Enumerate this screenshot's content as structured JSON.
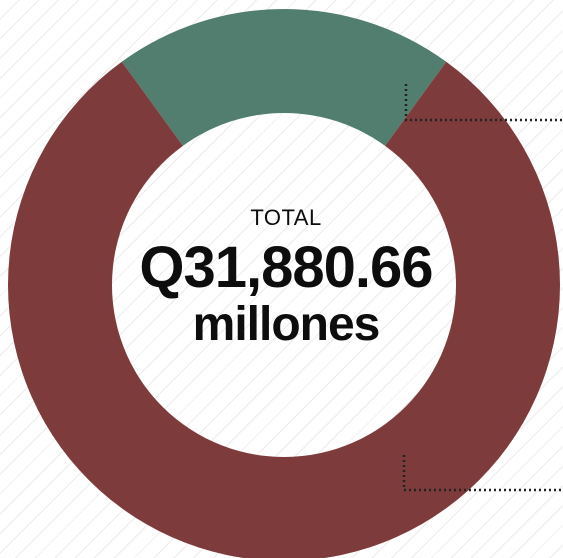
{
  "chart_data": {
    "type": "pie",
    "variant": "donut",
    "center": {
      "label": "TOTAL",
      "value": "Q31,880.66",
      "unit": "millones"
    },
    "slices": [
      {
        "value": 0.2,
        "color": "#517e6e"
      },
      {
        "value": 0.8,
        "color": "#7e3b3b"
      }
    ],
    "title": "",
    "legend": "none"
  }
}
